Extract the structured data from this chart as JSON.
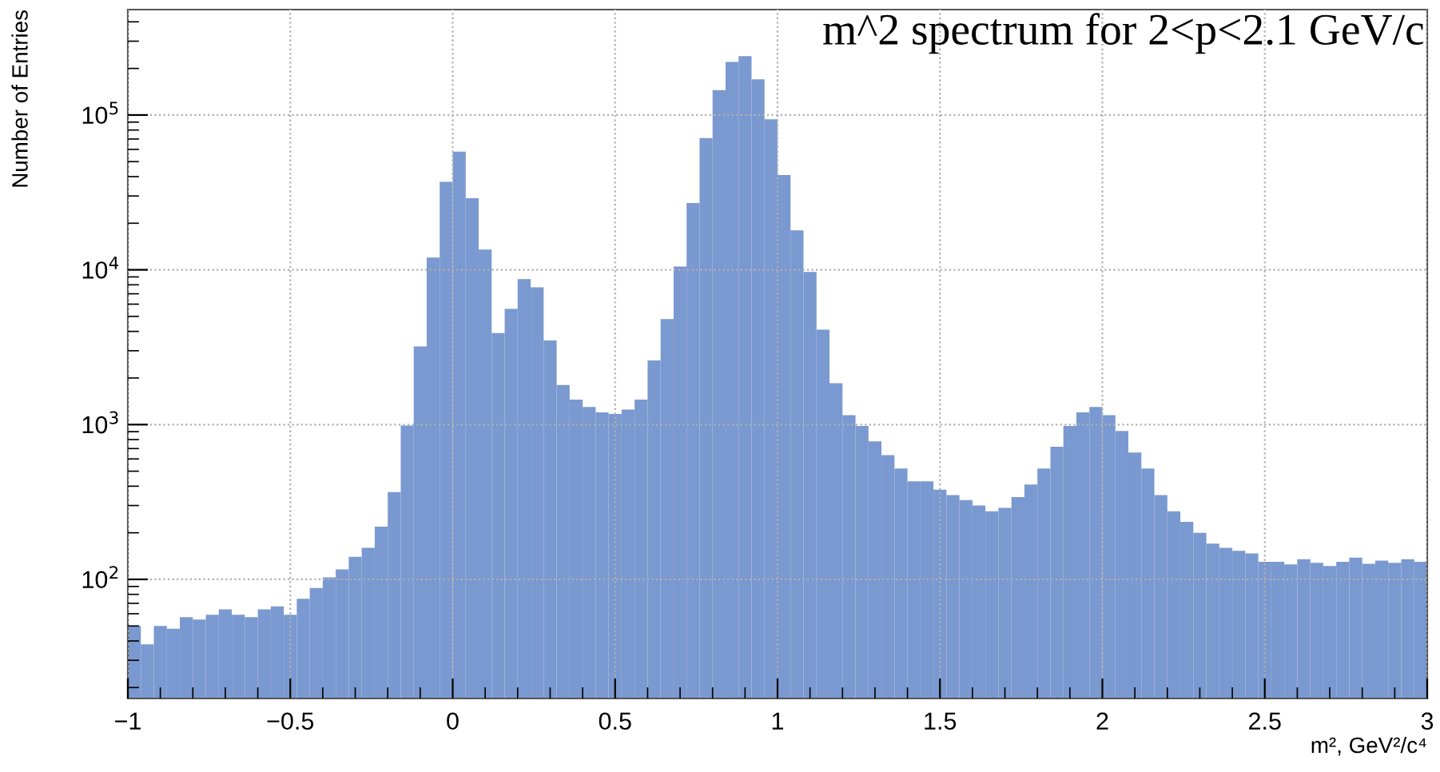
{
  "chart_data": {
    "type": "histogram",
    "title": "m^2 spectrum for 2<p<2.1 GeV/c",
    "xlabel": "m², GeV²/c⁴",
    "ylabel": "Number of Entries",
    "bins": [
      -1,
      -0.96,
      -0.92,
      -0.88,
      -0.84,
      -0.8,
      -0.76,
      -0.72,
      -0.68,
      -0.64,
      -0.6,
      -0.56,
      -0.52,
      -0.48,
      -0.44,
      -0.4,
      -0.36,
      -0.32,
      -0.28,
      -0.24,
      -0.2,
      -0.16,
      -0.12,
      -0.08,
      -0.04,
      0,
      0.04,
      0.08,
      0.12,
      0.16,
      0.2,
      0.24,
      0.28,
      0.32,
      0.36,
      0.4,
      0.44,
      0.48,
      0.52,
      0.56,
      0.6,
      0.64,
      0.68,
      0.72,
      0.76,
      0.8,
      0.84,
      0.88,
      0.92,
      0.96,
      1,
      1.04,
      1.08,
      1.12,
      1.16,
      1.2,
      1.24,
      1.28,
      1.32,
      1.36,
      1.4,
      1.44,
      1.48,
      1.52,
      1.56,
      1.6,
      1.64,
      1.68,
      1.72,
      1.76,
      1.8,
      1.84,
      1.88,
      1.92,
      1.96,
      2,
      2.04,
      2.08,
      2.12,
      2.16,
      2.2,
      2.24,
      2.28,
      2.32,
      2.36,
      2.4,
      2.44,
      2.48,
      2.52,
      2.56,
      2.6,
      2.64,
      2.68,
      2.72,
      2.76,
      2.8,
      2.84,
      2.88,
      2.92,
      2.96,
      3
    ],
    "values": [
      50,
      38,
      50,
      48,
      57,
      55,
      59,
      64,
      59,
      57,
      64,
      67,
      59,
      75,
      88,
      103,
      116,
      140,
      160,
      219,
      366,
      985,
      3200,
      12000,
      37000,
      58000,
      29000,
      13500,
      3900,
      5600,
      8700,
      7700,
      3500,
      1800,
      1450,
      1300,
      1200,
      1170,
      1250,
      1450,
      2600,
      4800,
      10500,
      27000,
      71000,
      145000,
      220000,
      240000,
      170000,
      94000,
      41000,
      18000,
      9700,
      4100,
      1850,
      1150,
      980,
      780,
      635,
      520,
      430,
      430,
      380,
      350,
      325,
      300,
      275,
      290,
      340,
      410,
      520,
      720,
      980,
      1200,
      1300,
      1150,
      910,
      660,
      520,
      350,
      275,
      235,
      200,
      170,
      160,
      153,
      147,
      130,
      130,
      125,
      135,
      128,
      122,
      130,
      138,
      126,
      132,
      128,
      135,
      130
    ],
    "color": "#7a99d0",
    "log": "y",
    "xlim": [
      -1,
      3
    ],
    "ylim": [
      17,
      480000
    ],
    "xticks": [
      {
        "value": -1,
        "label": "−1"
      },
      {
        "value": -0.5,
        "label": "−0.5"
      },
      0,
      0.5,
      1,
      1.5,
      2,
      2.5,
      3
    ],
    "yticks": [
      {
        "value": 100,
        "label": "10$^{2}$"
      },
      {
        "value": 1000,
        "label": "10$^{3}$"
      },
      {
        "value": 10000,
        "label": "10$^{4}$"
      },
      {
        "value": 100000,
        "label": "10$^{5}$"
      }
    ],
    "grid": true
  }
}
